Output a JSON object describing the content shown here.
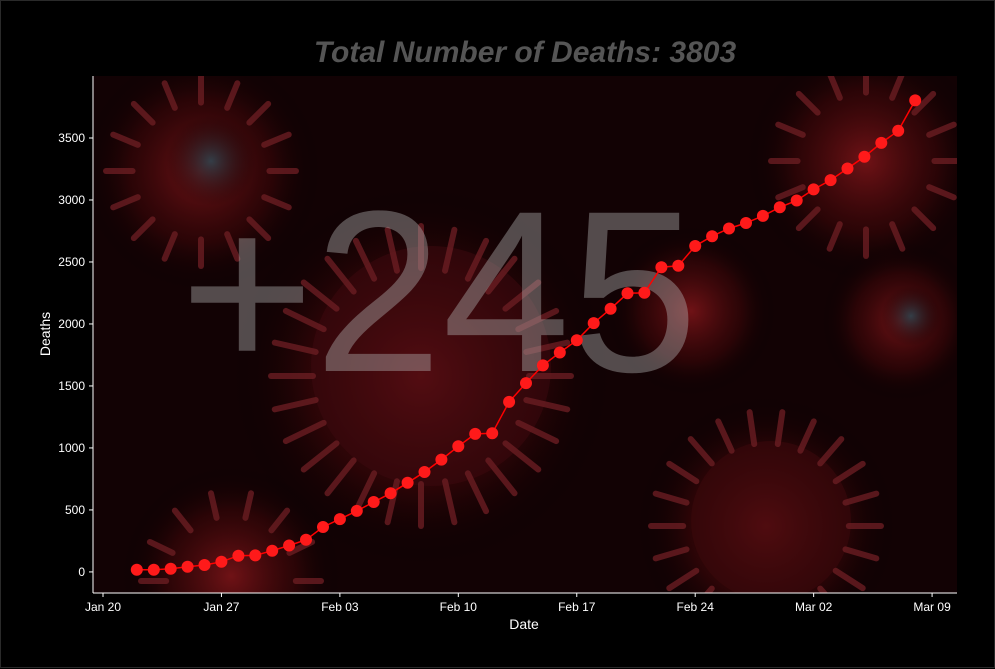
{
  "chart_data": {
    "type": "line",
    "title": "Total Number of Deaths: 3803",
    "annotation": "+245",
    "xlabel": "Date",
    "ylabel": "Deaths",
    "x_tick_labels": [
      "Jan 20",
      "Jan 27",
      "Feb 03",
      "Feb 10",
      "Feb 17",
      "Feb 24",
      "Mar 02",
      "Mar 09"
    ],
    "y_ticks": [
      0,
      500,
      1000,
      1500,
      2000,
      2500,
      3000,
      3500
    ],
    "xlim": [
      "2020-01-20",
      "2020-03-10"
    ],
    "ylim": [
      -170,
      4000
    ],
    "grid": false,
    "line_color": "#ff0000",
    "marker_color": "#ff1a1a",
    "series": [
      {
        "dates": [
          "2020-01-22",
          "2020-01-23",
          "2020-01-24",
          "2020-01-25",
          "2020-01-26",
          "2020-01-27",
          "2020-01-28",
          "2020-01-29",
          "2020-01-30",
          "2020-01-31",
          "2020-02-01",
          "2020-02-02",
          "2020-02-03",
          "2020-02-04",
          "2020-02-05",
          "2020-02-06",
          "2020-02-07",
          "2020-02-08",
          "2020-02-09",
          "2020-02-10",
          "2020-02-11",
          "2020-02-12",
          "2020-02-13",
          "2020-02-14",
          "2020-02-15",
          "2020-02-16",
          "2020-02-17",
          "2020-02-18",
          "2020-02-19",
          "2020-02-20",
          "2020-02-21",
          "2020-02-22",
          "2020-02-23",
          "2020-02-24",
          "2020-02-25",
          "2020-02-26",
          "2020-02-27",
          "2020-02-28",
          "2020-02-29",
          "2020-03-01",
          "2020-03-02",
          "2020-03-03",
          "2020-03-04",
          "2020-03-05",
          "2020-03-06",
          "2020-03-07",
          "2020-03-08"
        ],
        "values": [
          17,
          18,
          26,
          42,
          56,
          82,
          131,
          133,
          171,
          213,
          259,
          362,
          426,
          492,
          564,
          634,
          719,
          806,
          906,
          1013,
          1113,
          1118,
          1371,
          1523,
          1666,
          1770,
          1868,
          2007,
          2122,
          2247,
          2251,
          2458,
          2469,
          2629,
          2708,
          2770,
          2814,
          2872,
          2941,
          2996,
          3085,
          3160,
          3254,
          3348,
          3460,
          3558,
          3803
        ]
      }
    ]
  }
}
